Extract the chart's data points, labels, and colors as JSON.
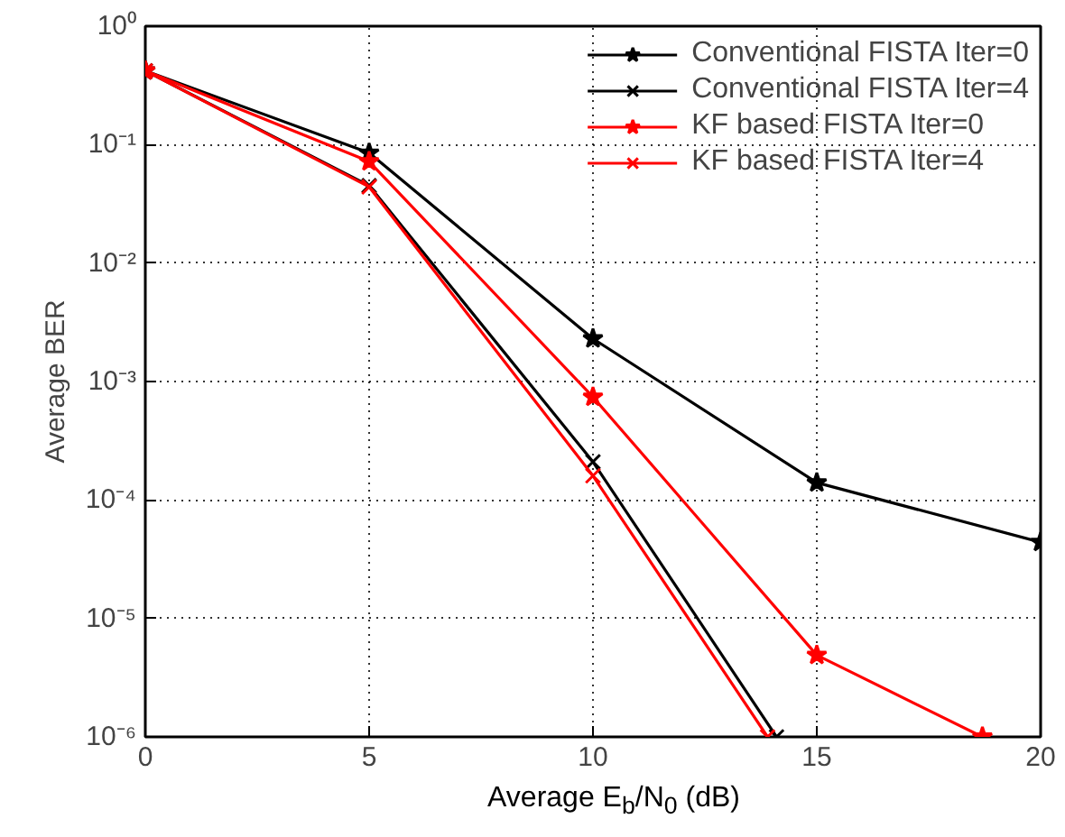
{
  "chart_data": {
    "type": "line",
    "xlabel": "Average E$_{b}$/N$_{0}$ (dB)",
    "ylabel": "Average BER",
    "x": [
      0,
      5,
      10,
      15,
      20
    ],
    "series": [
      {
        "name": "Conventional FISTA Iter=0",
        "color": "#000000",
        "marker": "star",
        "values": [
          0.42,
          0.085,
          0.0023,
          0.00014,
          4.4e-05
        ]
      },
      {
        "name": "Conventional FISTA Iter=4",
        "color": "#000000",
        "marker": "cross",
        "x": [
          0,
          5,
          10,
          14.1
        ],
        "values": [
          0.42,
          0.045,
          0.00021,
          1e-06
        ]
      },
      {
        "name": "KF based FISTA Iter=0",
        "color": "#ff0000",
        "marker": "star",
        "x": [
          0,
          5,
          10,
          15,
          18.7
        ],
        "values": [
          0.42,
          0.072,
          0.00074,
          4.9e-06,
          1e-06
        ]
      },
      {
        "name": "KF based FISTA Iter=4",
        "color": "#ff0000",
        "marker": "cross",
        "x": [
          0,
          5,
          10,
          13.9
        ],
        "values": [
          0.42,
          0.044,
          0.00016,
          1e-06
        ]
      }
    ],
    "log": "y",
    "xlim": [
      0,
      20
    ],
    "ylim": [
      1e-06,
      1
    ],
    "xticks": [
      0,
      5,
      10,
      15,
      20
    ],
    "yticks": [
      {
        "value": 1,
        "label": "10⁰"
      },
      {
        "value": 0.1,
        "label": "10⁻¹"
      },
      {
        "value": 0.01,
        "label": "10⁻²"
      },
      {
        "value": 0.001,
        "label": "10⁻³"
      },
      {
        "value": 0.0001,
        "label": "10⁻⁴"
      },
      {
        "value": 1e-05,
        "label": "10⁻⁵"
      },
      {
        "value": 1e-06,
        "label": "10⁻⁶"
      }
    ],
    "grid": true,
    "legend": "top right",
    "line_style": "solid"
  }
}
